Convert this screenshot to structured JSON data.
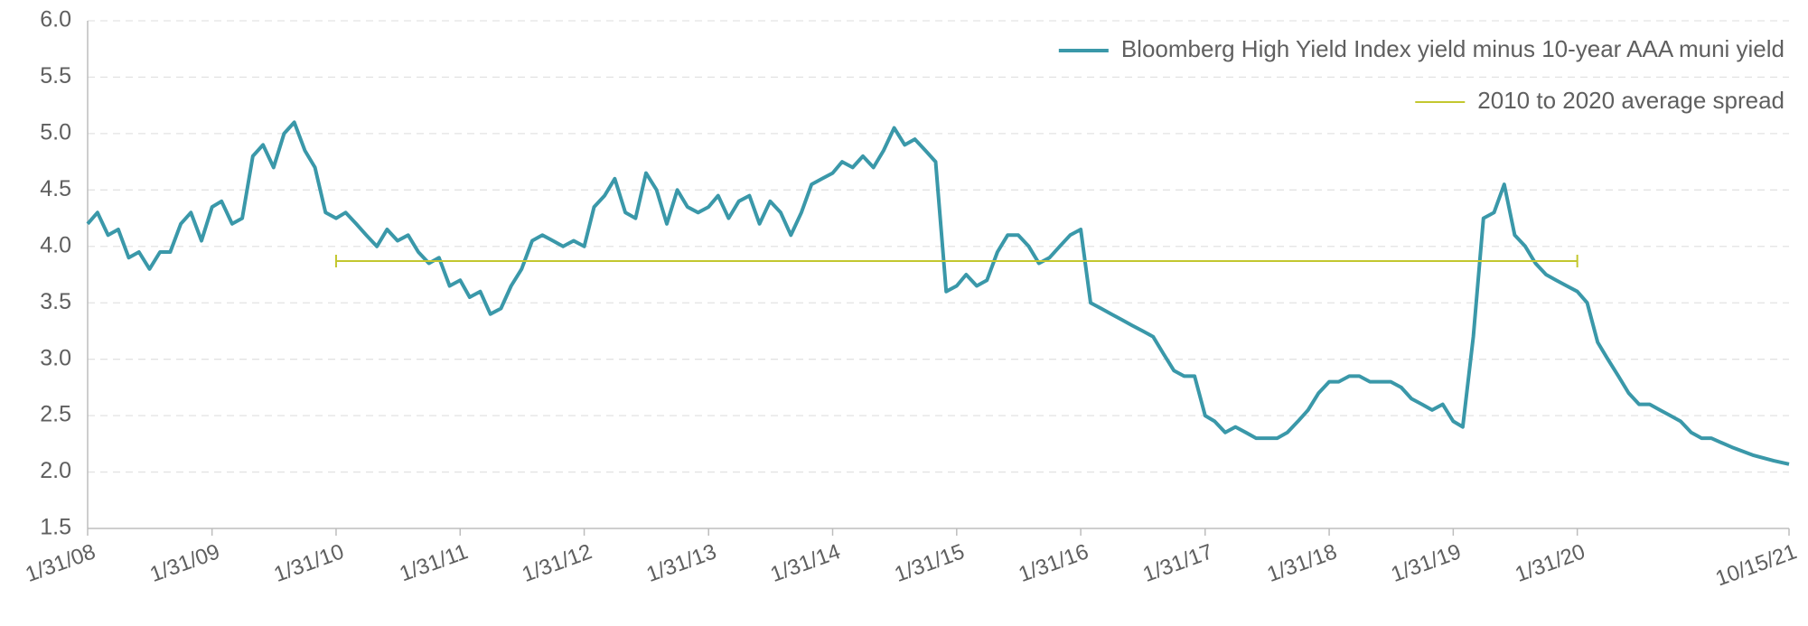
{
  "chart_data": {
    "type": "line",
    "xlim": [
      "1/31/08",
      "10/15/21"
    ],
    "xticks": [
      "1/31/08",
      "1/31/09",
      "1/31/10",
      "1/31/11",
      "1/31/12",
      "1/31/13",
      "1/31/14",
      "1/31/15",
      "1/31/16",
      "1/31/17",
      "1/31/18",
      "1/31/19",
      "1/31/20",
      "10/15/21"
    ],
    "ylim": [
      1.5,
      6
    ],
    "yticks": [
      1.5,
      {
        "value": 2,
        "label": "2.0"
      },
      2.5,
      {
        "value": 3,
        "label": "3.0"
      },
      3.5,
      {
        "value": 4,
        "label": "4.0"
      },
      4.5,
      {
        "value": 5,
        "label": "5.0"
      },
      5.5,
      {
        "value": 6,
        "label": "6.0"
      }
    ],
    "grid": true,
    "legend": "upper right",
    "series": [
      {
        "name": "Bloomberg High Yield Index yield minus 10-year AAA muni yield",
        "color": "#3a98a9",
        "x": [
          "1/31/08",
          "2/29/08",
          "3/31/08",
          "4/30/08",
          "5/31/08",
          "6/30/08",
          "7/31/08",
          "8/31/08",
          "9/30/08",
          "10/31/08",
          "11/30/08",
          "12/31/08",
          "1/31/09",
          "2/28/09",
          "3/31/09",
          "4/30/09",
          "5/31/09",
          "6/30/09",
          "7/31/09",
          "8/31/09",
          "9/30/09",
          "10/31/09",
          "11/30/09",
          "12/31/09",
          "1/31/10",
          "2/28/10",
          "3/31/10",
          "4/30/10",
          "5/31/10",
          "6/30/10",
          "7/31/10",
          "8/31/10",
          "9/30/10",
          "10/31/10",
          "11/30/10",
          "12/31/10",
          "1/31/11",
          "2/28/11",
          "3/31/11",
          "4/30/11",
          "5/31/11",
          "6/30/11",
          "7/31/11",
          "8/31/11",
          "9/30/11",
          "10/31/11",
          "11/30/11",
          "12/31/11",
          "1/31/12",
          "2/29/12",
          "3/31/12",
          "4/30/12",
          "5/31/12",
          "6/30/12",
          "7/31/12",
          "8/31/12",
          "9/30/12",
          "10/31/12",
          "11/30/12",
          "12/31/12",
          "1/31/13",
          "2/28/13",
          "3/31/13",
          "4/30/13",
          "5/31/13",
          "6/30/13",
          "7/31/13",
          "8/31/13",
          "9/30/13",
          "10/31/13",
          "11/30/13",
          "12/31/13",
          "1/31/14",
          "2/28/14",
          "3/31/14",
          "4/30/14",
          "5/31/14",
          "6/30/14",
          "7/31/14",
          "8/31/14",
          "9/30/14",
          "10/31/14",
          "11/30/14",
          "12/31/14",
          "1/31/15",
          "2/28/15",
          "3/31/15",
          "4/30/15",
          "5/31/15",
          "6/30/15",
          "7/31/15",
          "8/31/15",
          "9/30/15",
          "10/31/15",
          "11/30/15",
          "12/31/15",
          "1/31/16",
          "2/29/16",
          "3/31/16",
          "4/30/16",
          "5/31/16",
          "6/30/16",
          "7/31/16",
          "8/31/16",
          "9/30/16",
          "10/31/16",
          "11/30/16",
          "12/31/16",
          "1/31/17",
          "2/28/17",
          "3/31/17",
          "4/30/17",
          "5/31/17",
          "6/30/17",
          "7/31/17",
          "8/31/17",
          "9/30/17",
          "10/31/17",
          "11/30/17",
          "12/31/17",
          "1/31/18",
          "2/28/18",
          "3/31/18",
          "4/30/18",
          "5/31/18",
          "6/30/18",
          "7/31/18",
          "8/31/18",
          "9/30/18",
          "10/31/18",
          "11/30/18",
          "12/31/18",
          "1/31/19",
          "2/28/19",
          "3/31/19",
          "4/30/19",
          "5/31/19",
          "6/30/19",
          "7/31/19",
          "8/31/19",
          "9/30/19",
          "10/31/19",
          "11/30/19",
          "12/31/19",
          "1/31/20",
          "2/29/20",
          "3/31/20",
          "4/30/20",
          "5/31/20",
          "6/30/20",
          "7/31/20",
          "8/31/20",
          "9/30/20",
          "10/31/20",
          "11/30/20",
          "12/31/20",
          "1/31/21",
          "2/28/21",
          "4/30/21",
          "6/30/21",
          "8/31/21",
          "10/15/21"
        ],
        "values": [
          4.2,
          4.3,
          4.1,
          4.15,
          3.9,
          3.95,
          3.8,
          3.95,
          3.95,
          4.2,
          4.3,
          4.05,
          4.35,
          4.4,
          4.2,
          4.25,
          4.8,
          4.9,
          4.7,
          5.0,
          5.1,
          4.85,
          4.7,
          4.3,
          4.25,
          4.3,
          4.2,
          4.1,
          4.0,
          4.15,
          4.05,
          4.1,
          3.95,
          3.85,
          3.9,
          3.65,
          3.7,
          3.55,
          3.6,
          3.4,
          3.45,
          3.65,
          3.8,
          4.05,
          4.1,
          4.05,
          4.0,
          4.05,
          4.0,
          4.35,
          4.45,
          4.6,
          4.3,
          4.25,
          4.65,
          4.5,
          4.2,
          4.5,
          4.35,
          4.3,
          4.35,
          4.45,
          4.25,
          4.4,
          4.45,
          4.2,
          4.4,
          4.3,
          4.1,
          4.3,
          4.55,
          4.6,
          4.65,
          4.75,
          4.7,
          4.8,
          4.7,
          4.85,
          5.05,
          4.9,
          4.95,
          4.85,
          4.75,
          3.6,
          3.65,
          3.75,
          3.65,
          3.7,
          3.95,
          4.1,
          4.1,
          4.0,
          3.85,
          3.9,
          4.0,
          4.1,
          4.15,
          3.5,
          3.45,
          3.4,
          3.35,
          3.3,
          3.25,
          3.2,
          3.05,
          2.9,
          2.85,
          2.85,
          2.5,
          2.45,
          2.35,
          2.4,
          2.35,
          2.3,
          2.3,
          2.3,
          2.35,
          2.45,
          2.55,
          2.7,
          2.8,
          2.8,
          2.85,
          2.85,
          2.8,
          2.8,
          2.8,
          2.75,
          2.65,
          2.6,
          2.55,
          2.6,
          2.45,
          2.4,
          3.2,
          4.25,
          4.3,
          4.55,
          4.1,
          4.0,
          3.85,
          3.75,
          3.7,
          3.65,
          3.6,
          3.5,
          3.15,
          3.0,
          2.85,
          2.7,
          2.6,
          2.6,
          2.55,
          2.5,
          2.45,
          2.35,
          2.3,
          2.3,
          2.22,
          2.15,
          2.1,
          2.07
        ]
      },
      {
        "name": "2010 to 2020 average spread",
        "color": "#c3c72f",
        "x": [
          "1/31/10",
          "1/31/20"
        ],
        "values": [
          3.87,
          3.87
        ]
      }
    ]
  }
}
